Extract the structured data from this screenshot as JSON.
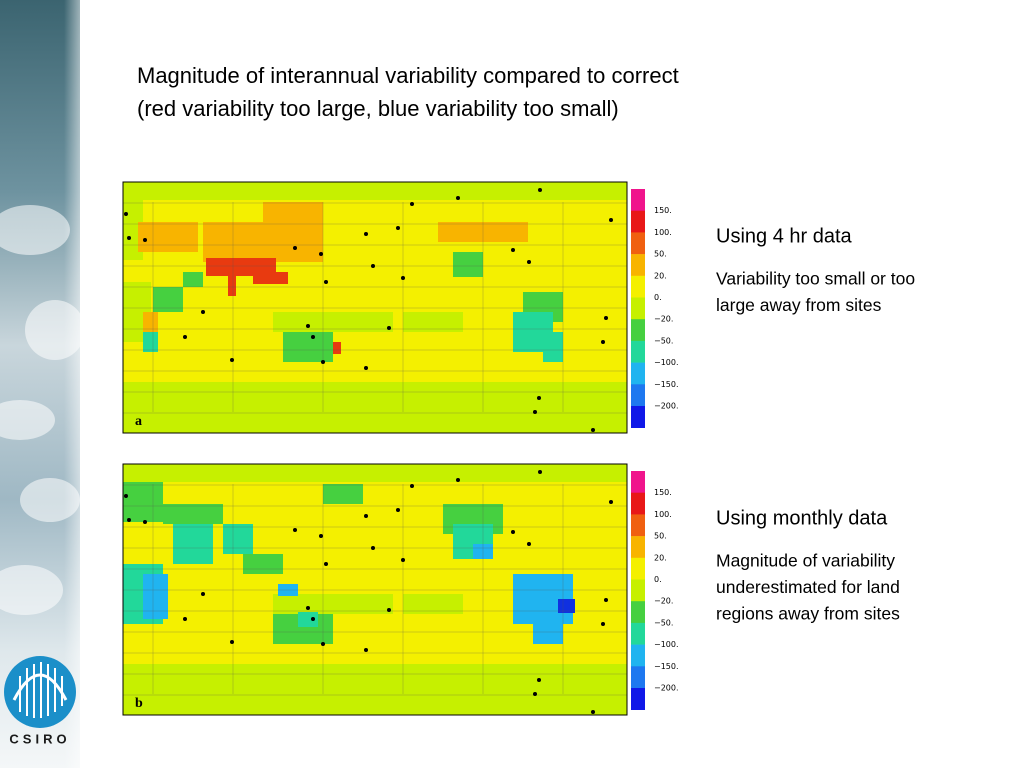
{
  "header": {
    "title_lines": [
      "Magnitude of interannual variability compared to correct",
      "(red variability too large, blue variability too small)"
    ]
  },
  "panels": [
    {
      "label": "a",
      "heading": "Using 4 hr data",
      "description_lines": [
        "Variability too small or too",
        "large away from sites"
      ]
    },
    {
      "label": "b",
      "heading": "Using monthly data",
      "description_lines": [
        "Magnitude of variability",
        "underestimated for land",
        "regions away from sites"
      ]
    }
  ],
  "colorbar": {
    "labels": [
      "150.",
      "100.",
      "50.",
      "20.",
      "0.",
      "−20.",
      "−50.",
      "−100.",
      "−150.",
      "−200."
    ]
  },
  "logo": {
    "text": "CSIRO"
  }
}
